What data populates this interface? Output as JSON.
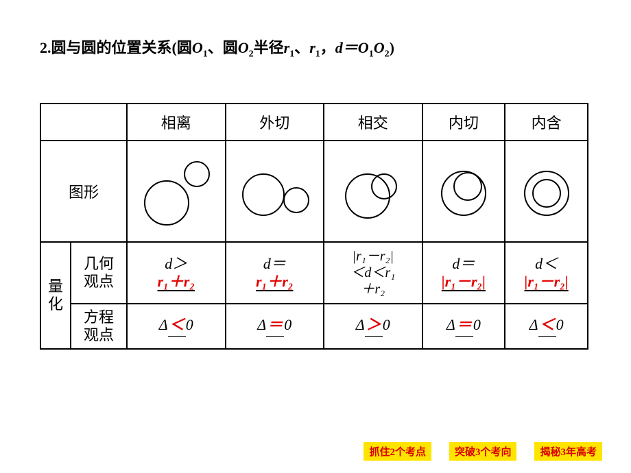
{
  "title": {
    "prefix": "2.圆与圆的位置关系(圆",
    "o1": "O",
    "o1sub": "1",
    "sep1": "、圆",
    "o2": "O",
    "o2sub": "2",
    "radii": "半径",
    "r1": "r",
    "r1sub": "1",
    "sep2": "、",
    "r2": "r",
    "r2sub": "1",
    "sep3": "，",
    "d_eq": "d＝O",
    "o1o2_1": "1",
    "o_mid": "O",
    "o1o2_2": "2",
    "close": ")"
  },
  "headers": {
    "c1": "相离",
    "c2": "外切",
    "c3": "相交",
    "c4": "内切",
    "c5": "内含"
  },
  "row_labels": {
    "shape": "图形",
    "quant": "量化",
    "geom_l1": "几何",
    "geom_l2": "观点",
    "eq_l1": "方程",
    "eq_l2": "观点"
  },
  "geom": {
    "c1": {
      "line1": "d＞",
      "ans": "r₁＋r₂"
    },
    "c2": {
      "line1": "d＝",
      "ans": "r₁＋r₂"
    },
    "c3": {
      "l1": "|r₁－r₂|",
      "l2": "＜d＜r₁",
      "l3": "＋r₂"
    },
    "c4": {
      "line1": "d＝",
      "ans": "|r₁－r₂|"
    },
    "c5": {
      "line1": "d＜",
      "ans": "|r₁－r₂|"
    }
  },
  "delta": {
    "c1": {
      "d": "Δ",
      "op": "＜",
      "z": "0"
    },
    "c2": {
      "d": "Δ",
      "op": "＝",
      "z": "0"
    },
    "c3": {
      "d": "Δ",
      "op": "＞",
      "z": "0"
    },
    "c4": {
      "d": "Δ",
      "op": "＝",
      "z": "0"
    },
    "c5": {
      "d": "Δ",
      "op": "＜",
      "z": "0"
    }
  },
  "footer": {
    "b1": "抓住2个考点",
    "b2": "突破3个考向",
    "b3": "揭秘3年高考"
  },
  "style": {
    "circle_stroke": "#000000",
    "red": "#e30000",
    "bg": "#ffffff",
    "btn_bg": "#ffe400"
  }
}
